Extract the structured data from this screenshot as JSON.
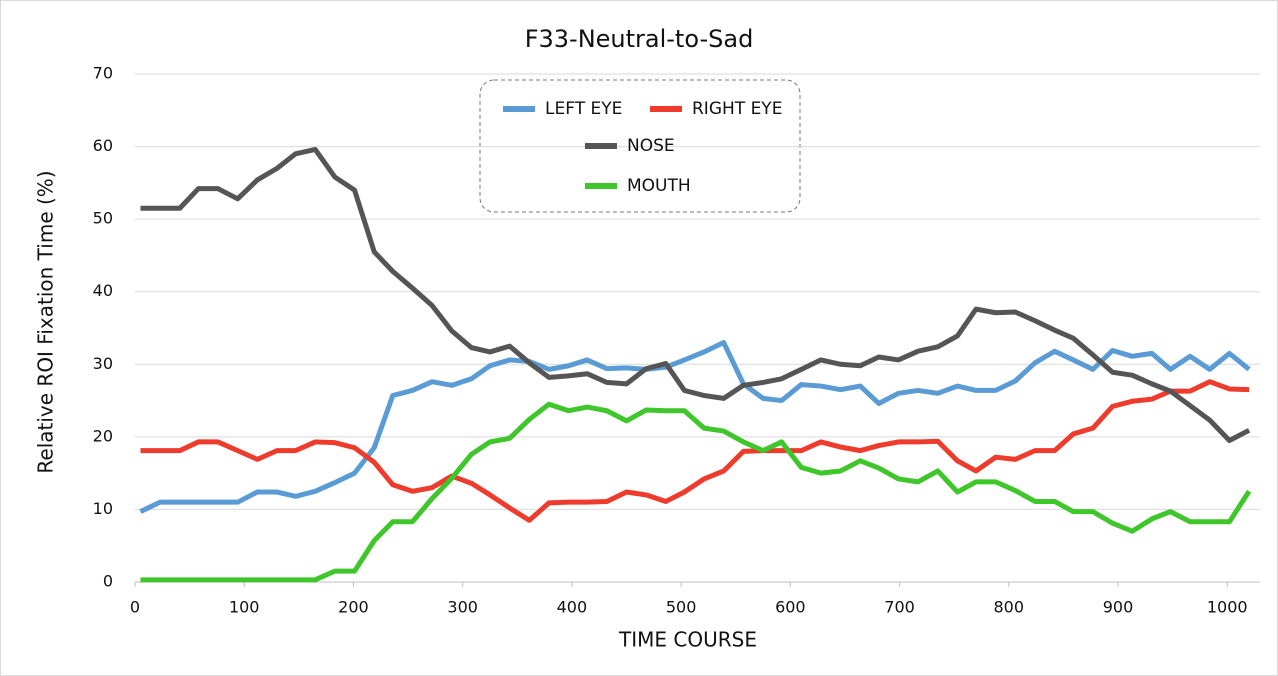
{
  "chart_data": {
    "type": "line",
    "title": "F33-Neutral-to-Sad",
    "x_label": "TIME  COURSE",
    "y_label": "Relative  ROI  Fixation  Time  (%)",
    "x": [
      5,
      23,
      41,
      58,
      76,
      94,
      112,
      130,
      147,
      165,
      183,
      201,
      219,
      236,
      254,
      272,
      290,
      308,
      325,
      343,
      361,
      379,
      397,
      414,
      432,
      450,
      468,
      486,
      503,
      521,
      539,
      557,
      575,
      592,
      610,
      628,
      646,
      664,
      681,
      699,
      717,
      735,
      753,
      770,
      788,
      806,
      824,
      842,
      859,
      877,
      895,
      913,
      931,
      948,
      966,
      984,
      1002,
      1020
    ],
    "series": [
      {
        "name": "LEFT EYE",
        "color": "#5b9bd5",
        "values": [
          9.7,
          11,
          11,
          11,
          11,
          11,
          12.4,
          12.4,
          11.8,
          12.5,
          13.7,
          15,
          18.5,
          25.7,
          26.4,
          27.6,
          27.1,
          28,
          29.8,
          30.6,
          30.4,
          29.3,
          29.8,
          30.6,
          29.4,
          29.5,
          29.3,
          29.6,
          30.6,
          31.7,
          33,
          27.3,
          25.3,
          25,
          27.2,
          27,
          26.5,
          27,
          24.6,
          26,
          26.4,
          26,
          27,
          26.4,
          26.4,
          27.7,
          30.2,
          31.8,
          30.6,
          29.3,
          31.9,
          31.1,
          31.5,
          29.3,
          31.1,
          29.3,
          31.5,
          29.3
        ]
      },
      {
        "name": "RIGHT EYE",
        "color": "#ee3b2b",
        "values": [
          18.1,
          18.1,
          18.1,
          19.3,
          19.3,
          18.1,
          16.9,
          18.1,
          18.1,
          19.3,
          19.2,
          18.5,
          16.5,
          13.4,
          12.5,
          13,
          14.6,
          13.6,
          12,
          10.2,
          8.5,
          10.9,
          11,
          11,
          11.1,
          12.4,
          12,
          11.1,
          12.4,
          14.2,
          15.3,
          18,
          18.1,
          18.1,
          18.1,
          19.3,
          18.6,
          18.1,
          18.8,
          19.3,
          19.3,
          19.4,
          16.7,
          15.3,
          17.2,
          16.9,
          18.1,
          18.1,
          20.4,
          21.2,
          24.2,
          24.9,
          25.2,
          26.3,
          26.3,
          27.6,
          26.6,
          26.5
        ]
      },
      {
        "name": "NOSE",
        "color": "#555555",
        "values": [
          51.5,
          51.5,
          51.5,
          54.2,
          54.2,
          52.8,
          55.4,
          57,
          59,
          59.6,
          55.8,
          54,
          45.5,
          42.8,
          40.5,
          38.1,
          34.6,
          32.3,
          31.7,
          32.5,
          30.2,
          28.2,
          28.4,
          28.7,
          27.5,
          27.3,
          29.4,
          30.1,
          26.4,
          25.7,
          25.3,
          27.1,
          27.5,
          28,
          29.3,
          30.6,
          30,
          29.8,
          31,
          30.6,
          31.8,
          32.4,
          33.9,
          37.6,
          37.1,
          37.2,
          36,
          34.7,
          33.6,
          31.3,
          28.9,
          28.5,
          27.3,
          26.3,
          24.3,
          22.3,
          19.5,
          20.9
        ]
      },
      {
        "name": "MOUTH",
        "color": "#3ec62a",
        "values": [
          0.3,
          0.3,
          0.3,
          0.3,
          0.3,
          0.3,
          0.3,
          0.3,
          0.3,
          0.3,
          1.5,
          1.5,
          5.7,
          8.3,
          8.3,
          11.5,
          14.3,
          17.6,
          19.3,
          19.8,
          22.4,
          24.5,
          23.6,
          24.1,
          23.6,
          22.2,
          23.7,
          23.6,
          23.6,
          21.2,
          20.8,
          19.3,
          18.1,
          19.3,
          15.8,
          15,
          15.3,
          16.7,
          15.7,
          14.2,
          13.8,
          15.3,
          12.4,
          13.8,
          13.8,
          12.6,
          11.1,
          11.1,
          9.7,
          9.7,
          8.1,
          7,
          8.7,
          9.7,
          8.3,
          8.3,
          8.3,
          12.5
        ]
      }
    ],
    "xlim": [
      0,
      1030
    ],
    "xticks": [
      0,
      100,
      200,
      300,
      400,
      500,
      600,
      700,
      800,
      900,
      1000
    ],
    "ylim": [
      0,
      70
    ],
    "yticks": [
      0,
      10,
      20,
      30,
      40,
      50,
      60,
      70
    ],
    "grid": true,
    "legend": "top"
  }
}
